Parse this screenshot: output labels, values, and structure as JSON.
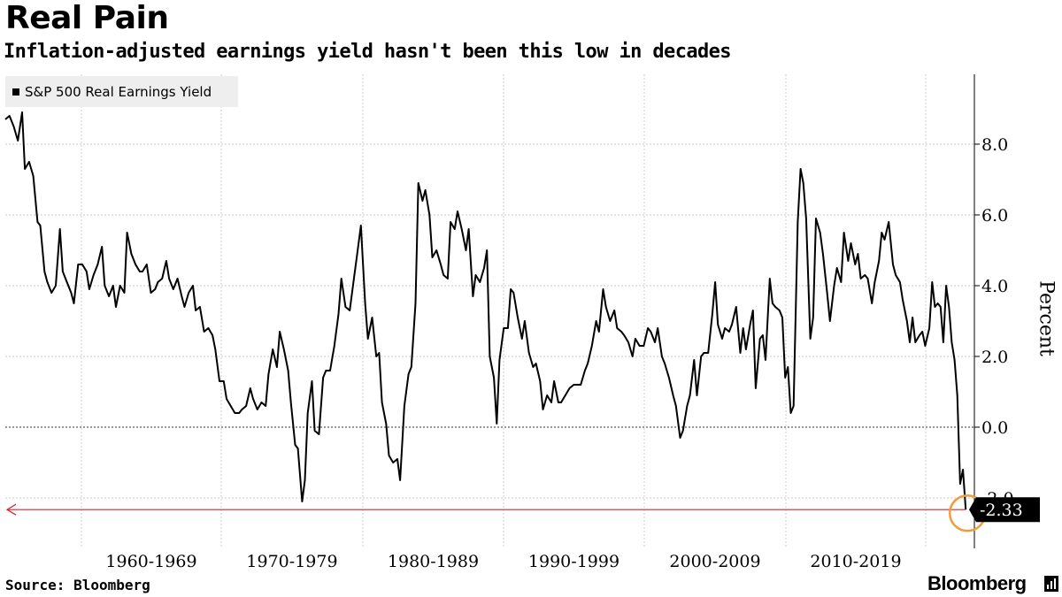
{
  "header": {
    "title": "Real Pain",
    "subtitle": "Inflation-adjusted earnings yield hasn't been this low in decades"
  },
  "footer": {
    "source": "Source: Bloomberg",
    "logo": "Bloomberg"
  },
  "colors": {
    "series": "#000000",
    "zero_line": "#999999",
    "grid": "#cccccc",
    "reference_line": "#d0262f",
    "highlight_circle": "#f29b38",
    "last_value_badge": "#000000"
  },
  "chart_data": {
    "type": "line",
    "title": "Real Pain",
    "subtitle": "Inflation-adjusted earnings yield hasn't been this low in decades",
    "ylabel": "Percent",
    "xlabel": "",
    "ylim": [
      -3.4,
      10
    ],
    "y_ticks": [
      -2.0,
      0.0,
      2.0,
      4.0,
      6.0,
      8.0
    ],
    "y_tick_labels": [
      "-2.0",
      "0.0",
      "2.0",
      "4.0",
      "6.0",
      "8.0"
    ],
    "x_range": [
      1954.0,
      2021.7
    ],
    "x_tick_labels": [
      "1960-1969",
      "1970-1979",
      "1980-1989",
      "1990-1999",
      "2000-2009",
      "2010-2019"
    ],
    "grid": true,
    "legend_position": "top-left",
    "series": [
      {
        "name": "S&P 500 Real Earnings Yield",
        "points": [
          [
            1954.0,
            8.7
          ],
          [
            1954.3,
            8.8
          ],
          [
            1954.6,
            8.5
          ],
          [
            1954.9,
            8.1
          ],
          [
            1955.2,
            8.9
          ],
          [
            1955.4,
            7.3
          ],
          [
            1955.7,
            7.5
          ],
          [
            1956.0,
            7.1
          ],
          [
            1956.3,
            5.8
          ],
          [
            1956.5,
            5.7
          ],
          [
            1956.8,
            4.4
          ],
          [
            1957.0,
            4.1
          ],
          [
            1957.3,
            3.8
          ],
          [
            1957.6,
            4.0
          ],
          [
            1957.9,
            5.6
          ],
          [
            1958.1,
            4.4
          ],
          [
            1958.4,
            4.1
          ],
          [
            1958.7,
            3.8
          ],
          [
            1958.9,
            3.5
          ],
          [
            1959.2,
            4.6
          ],
          [
            1959.5,
            4.6
          ],
          [
            1959.8,
            4.4
          ],
          [
            1960.0,
            3.9
          ],
          [
            1960.3,
            4.3
          ],
          [
            1960.6,
            4.6
          ],
          [
            1960.9,
            5.1
          ],
          [
            1961.1,
            4.0
          ],
          [
            1961.4,
            3.7
          ],
          [
            1961.7,
            4.0
          ],
          [
            1961.9,
            3.4
          ],
          [
            1962.2,
            4.0
          ],
          [
            1962.5,
            3.8
          ],
          [
            1962.7,
            5.5
          ],
          [
            1963.0,
            4.9
          ],
          [
            1963.3,
            4.6
          ],
          [
            1963.6,
            4.4
          ],
          [
            1963.8,
            4.4
          ],
          [
            1964.1,
            4.6
          ],
          [
            1964.4,
            3.8
          ],
          [
            1964.7,
            3.9
          ],
          [
            1964.9,
            4.1
          ],
          [
            1965.2,
            4.2
          ],
          [
            1965.5,
            4.7
          ],
          [
            1965.7,
            4.2
          ],
          [
            1966.0,
            3.9
          ],
          [
            1966.3,
            4.2
          ],
          [
            1966.6,
            3.7
          ],
          [
            1966.8,
            3.4
          ],
          [
            1967.1,
            3.8
          ],
          [
            1967.4,
            4.0
          ],
          [
            1967.6,
            3.3
          ],
          [
            1967.9,
            3.4
          ],
          [
            1968.2,
            2.7
          ],
          [
            1968.5,
            2.8
          ],
          [
            1968.8,
            2.6
          ],
          [
            1969.0,
            2.2
          ],
          [
            1969.3,
            1.3
          ],
          [
            1969.6,
            1.3
          ],
          [
            1969.8,
            0.8
          ],
          [
            1970.1,
            0.6
          ],
          [
            1970.4,
            0.4
          ],
          [
            1970.7,
            0.4
          ],
          [
            1970.9,
            0.5
          ],
          [
            1971.2,
            0.6
          ],
          [
            1971.5,
            1.1
          ],
          [
            1971.7,
            0.8
          ],
          [
            1972.0,
            0.5
          ],
          [
            1972.3,
            0.7
          ],
          [
            1972.6,
            0.6
          ],
          [
            1972.8,
            1.5
          ],
          [
            1973.1,
            2.2
          ],
          [
            1973.4,
            1.7
          ],
          [
            1973.6,
            2.7
          ],
          [
            1973.9,
            2.2
          ],
          [
            1974.2,
            1.6
          ],
          [
            1974.4,
            0.7
          ],
          [
            1974.7,
            -0.5
          ],
          [
            1974.9,
            -0.6
          ],
          [
            1975.2,
            -2.1
          ],
          [
            1975.4,
            -1.5
          ],
          [
            1975.6,
            0.4
          ],
          [
            1975.9,
            1.3
          ],
          [
            1976.1,
            -0.1
          ],
          [
            1976.4,
            -0.2
          ],
          [
            1976.7,
            1.4
          ],
          [
            1976.9,
            1.6
          ],
          [
            1977.2,
            1.6
          ],
          [
            1977.5,
            2.3
          ],
          [
            1977.8,
            3.2
          ],
          [
            1978.0,
            4.2
          ],
          [
            1978.3,
            3.4
          ],
          [
            1978.6,
            3.3
          ],
          [
            1978.9,
            4.2
          ],
          [
            1979.1,
            4.8
          ],
          [
            1979.4,
            5.7
          ],
          [
            1979.7,
            3.5
          ],
          [
            1979.9,
            2.5
          ],
          [
            1980.2,
            3.1
          ],
          [
            1980.5,
            2.0
          ],
          [
            1980.7,
            2.1
          ],
          [
            1980.9,
            0.7
          ],
          [
            1981.2,
            0.1
          ],
          [
            1981.4,
            -0.8
          ],
          [
            1981.7,
            -1.0
          ],
          [
            1982.0,
            -0.9
          ],
          [
            1982.2,
            -1.5
          ],
          [
            1982.5,
            0.6
          ],
          [
            1982.8,
            1.5
          ],
          [
            1983.0,
            1.7
          ],
          [
            1983.3,
            3.5
          ],
          [
            1983.5,
            6.9
          ],
          [
            1983.8,
            6.4
          ],
          [
            1984.0,
            6.7
          ],
          [
            1984.3,
            6.0
          ],
          [
            1984.5,
            4.8
          ],
          [
            1984.8,
            5.0
          ],
          [
            1985.1,
            4.6
          ],
          [
            1985.3,
            4.3
          ],
          [
            1985.6,
            4.2
          ],
          [
            1985.8,
            5.8
          ],
          [
            1986.1,
            5.6
          ],
          [
            1986.3,
            6.1
          ],
          [
            1986.6,
            5.6
          ],
          [
            1986.9,
            5.0
          ],
          [
            1987.1,
            5.6
          ],
          [
            1987.4,
            3.7
          ],
          [
            1987.6,
            4.3
          ],
          [
            1987.9,
            4.1
          ],
          [
            1988.2,
            4.5
          ],
          [
            1988.4,
            5.0
          ],
          [
            1988.6,
            2.0
          ],
          [
            1988.9,
            1.4
          ],
          [
            1989.1,
            0.1
          ],
          [
            1989.3,
            1.9
          ],
          [
            1989.6,
            2.8
          ],
          [
            1989.9,
            2.8
          ],
          [
            1990.1,
            3.9
          ],
          [
            1990.3,
            3.8
          ],
          [
            1990.6,
            3.1
          ],
          [
            1990.9,
            2.5
          ],
          [
            1991.1,
            3.0
          ],
          [
            1991.4,
            2.1
          ],
          [
            1991.7,
            1.7
          ],
          [
            1991.9,
            1.8
          ],
          [
            1992.2,
            1.3
          ],
          [
            1992.4,
            0.5
          ],
          [
            1992.7,
            0.9
          ],
          [
            1993.0,
            0.7
          ],
          [
            1993.2,
            1.3
          ],
          [
            1993.5,
            0.7
          ],
          [
            1993.7,
            0.7
          ],
          [
            1994.0,
            0.9
          ],
          [
            1994.3,
            1.1
          ],
          [
            1994.6,
            1.2
          ],
          [
            1994.9,
            1.2
          ],
          [
            1995.1,
            1.2
          ],
          [
            1995.4,
            1.6
          ],
          [
            1995.6,
            1.8
          ],
          [
            1995.9,
            2.3
          ],
          [
            1996.2,
            3.0
          ],
          [
            1996.4,
            2.7
          ],
          [
            1996.7,
            3.9
          ],
          [
            1996.9,
            3.4
          ],
          [
            1997.2,
            3.0
          ],
          [
            1997.5,
            3.3
          ],
          [
            1997.7,
            2.8
          ],
          [
            1998.0,
            2.7
          ],
          [
            1998.2,
            2.6
          ],
          [
            1998.5,
            2.4
          ],
          [
            1998.8,
            2.0
          ],
          [
            1999.0,
            2.5
          ],
          [
            1999.3,
            2.3
          ],
          [
            1999.6,
            2.3
          ],
          [
            1999.9,
            2.8
          ],
          [
            2000.1,
            2.7
          ],
          [
            2000.4,
            2.4
          ],
          [
            2000.6,
            2.8
          ],
          [
            2000.9,
            2.0
          ],
          [
            2001.1,
            1.8
          ],
          [
            2001.4,
            1.4
          ],
          [
            2001.7,
            0.9
          ],
          [
            2001.9,
            0.6
          ],
          [
            2002.2,
            -0.3
          ],
          [
            2002.4,
            -0.1
          ],
          [
            2002.7,
            0.6
          ],
          [
            2002.9,
            0.9
          ],
          [
            2003.2,
            1.9
          ],
          [
            2003.4,
            0.9
          ],
          [
            2003.7,
            2.0
          ],
          [
            2003.9,
            2.1
          ],
          [
            2004.2,
            2.1
          ],
          [
            2004.5,
            3.2
          ],
          [
            2004.7,
            4.1
          ],
          [
            2004.9,
            2.9
          ],
          [
            2005.2,
            2.5
          ],
          [
            2005.4,
            2.8
          ],
          [
            2005.7,
            2.7
          ],
          [
            2005.9,
            2.9
          ],
          [
            2006.2,
            3.4
          ],
          [
            2006.5,
            2.1
          ],
          [
            2006.7,
            2.8
          ],
          [
            2006.9,
            2.2
          ],
          [
            2007.2,
            2.9
          ],
          [
            2007.4,
            3.3
          ],
          [
            2007.6,
            1.1
          ],
          [
            2007.9,
            2.5
          ],
          [
            2008.1,
            2.6
          ],
          [
            2008.3,
            1.9
          ],
          [
            2008.6,
            4.2
          ],
          [
            2008.8,
            3.5
          ],
          [
            2009.0,
            3.4
          ],
          [
            2009.3,
            3.3
          ],
          [
            2009.5,
            3.1
          ],
          [
            2009.7,
            1.4
          ],
          [
            2009.9,
            1.7
          ],
          [
            2010.1,
            0.4
          ],
          [
            2010.3,
            0.6
          ],
          [
            2010.6,
            5.8
          ],
          [
            2010.8,
            7.3
          ],
          [
            2011.0,
            6.9
          ],
          [
            2011.2,
            5.9
          ],
          [
            2011.5,
            2.5
          ],
          [
            2011.7,
            3.1
          ],
          [
            2011.9,
            5.9
          ],
          [
            2012.2,
            5.5
          ],
          [
            2012.4,
            4.9
          ],
          [
            2012.7,
            3.8
          ],
          [
            2012.9,
            3.0
          ],
          [
            2013.2,
            4.0
          ],
          [
            2013.4,
            4.5
          ],
          [
            2013.7,
            4.1
          ],
          [
            2013.9,
            5.5
          ],
          [
            2014.2,
            4.7
          ],
          [
            2014.4,
            5.2
          ],
          [
            2014.7,
            4.6
          ],
          [
            2014.9,
            4.9
          ],
          [
            2015.1,
            4.2
          ],
          [
            2015.4,
            4.3
          ],
          [
            2015.6,
            4.2
          ],
          [
            2015.9,
            3.5
          ],
          [
            2016.1,
            4.1
          ],
          [
            2016.4,
            4.7
          ],
          [
            2016.6,
            5.5
          ],
          [
            2016.8,
            5.3
          ],
          [
            2017.1,
            5.8
          ],
          [
            2017.4,
            4.6
          ],
          [
            2017.6,
            4.3
          ],
          [
            2017.9,
            4.1
          ],
          [
            2018.1,
            3.6
          ],
          [
            2018.4,
            3.0
          ],
          [
            2018.6,
            2.4
          ],
          [
            2018.8,
            3.1
          ],
          [
            2019.0,
            2.4
          ],
          [
            2019.3,
            2.6
          ],
          [
            2019.5,
            2.7
          ],
          [
            2019.7,
            2.3
          ],
          [
            2020.0,
            2.8
          ],
          [
            2020.2,
            4.1
          ],
          [
            2020.4,
            3.4
          ],
          [
            2020.6,
            3.5
          ],
          [
            2020.8,
            3.4
          ],
          [
            2021.0,
            2.4
          ],
          [
            2021.2,
            4.0
          ],
          [
            2021.4,
            3.4
          ],
          [
            2021.6,
            2.4
          ],
          [
            2021.8,
            1.9
          ],
          [
            2022.0,
            0.9
          ],
          [
            2022.2,
            -1.6
          ],
          [
            2022.4,
            -1.2
          ],
          [
            2022.6,
            -2.33
          ]
        ],
        "last_value_label": "-2.33"
      }
    ]
  }
}
